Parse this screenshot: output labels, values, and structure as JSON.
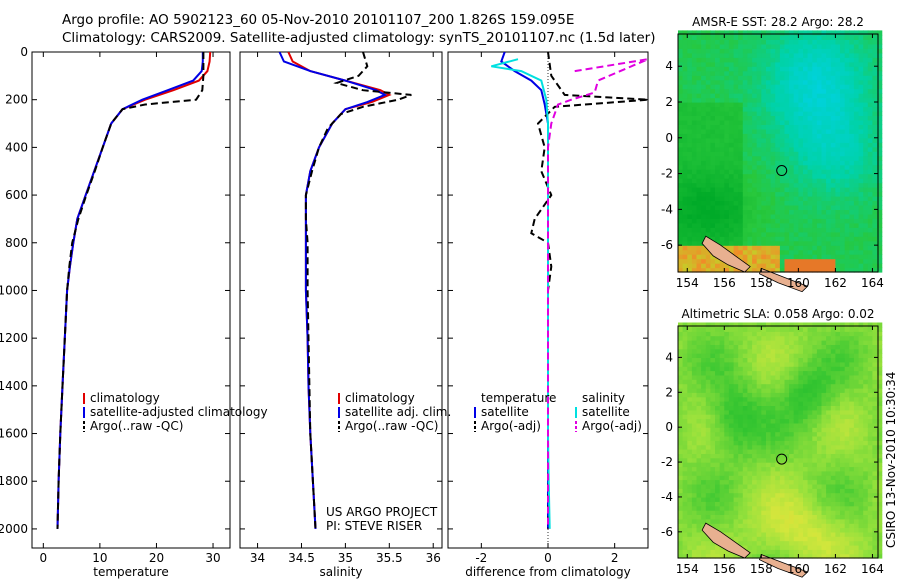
{
  "header": {
    "line1": "Argo profile: AO 5902123_60 05-Nov-2010 20101107_200 1.826S 159.095E",
    "line2": "Climatology: CARS2009. Satellite-adjusted climatology: synTS_20101107.nc (1.5d later)"
  },
  "side_label": "CSIRO 13-Nov-2010 10:30:34",
  "colors": {
    "climatology": "#e00000",
    "satellite": "#0000e6",
    "argo": "#000000",
    "sal_satellite": "#00e0e0",
    "sal_argo": "#e000e0"
  },
  "chart_data": [
    {
      "type": "line",
      "name": "temperature",
      "xlabel": "temperature",
      "ylabel": "",
      "xlim": [
        -2,
        33
      ],
      "ylim": [
        2080,
        0
      ],
      "xticks": [
        0,
        10,
        20,
        30
      ],
      "yticks": [
        0,
        200,
        400,
        600,
        800,
        1000,
        1200,
        1400,
        1600,
        1800,
        2000
      ],
      "legend": [
        "climatology",
        "satellite-adjusted climatology",
        "Argo(..raw -QC)"
      ],
      "series": [
        {
          "name": "climatology",
          "color": "red",
          "style": "solid",
          "points": [
            [
              29.5,
              0
            ],
            [
              29.4,
              40
            ],
            [
              29.0,
              80
            ],
            [
              27.5,
              120
            ],
            [
              23,
              160
            ],
            [
              18,
              200
            ],
            [
              14,
              240
            ],
            [
              12,
              300
            ],
            [
              10.5,
              400
            ],
            [
              9,
              500
            ],
            [
              7.5,
              600
            ],
            [
              6,
              700
            ],
            [
              5.3,
              800
            ],
            [
              4.7,
              900
            ],
            [
              4.2,
              1000
            ],
            [
              3.8,
              1200
            ],
            [
              3.4,
              1400
            ],
            [
              3.0,
              1600
            ],
            [
              2.7,
              1800
            ],
            [
              2.5,
              2000
            ]
          ]
        },
        {
          "name": "satellite-adjusted climatology",
          "color": "blue",
          "style": "solid",
          "points": [
            [
              28.2,
              0
            ],
            [
              28.2,
              40
            ],
            [
              28.0,
              80
            ],
            [
              26.5,
              120
            ],
            [
              22,
              160
            ],
            [
              17.5,
              200
            ],
            [
              14,
              240
            ],
            [
              12,
              300
            ],
            [
              10.5,
              400
            ],
            [
              9,
              500
            ],
            [
              7.5,
              600
            ],
            [
              6,
              700
            ],
            [
              5.3,
              800
            ],
            [
              4.7,
              900
            ],
            [
              4.2,
              1000
            ],
            [
              3.8,
              1200
            ],
            [
              3.4,
              1400
            ],
            [
              3.0,
              1600
            ],
            [
              2.7,
              1800
            ],
            [
              2.5,
              2000
            ]
          ]
        },
        {
          "name": "Argo(..raw -QC)",
          "color": "black",
          "style": "dashed",
          "points": [
            [
              28.3,
              0
            ],
            [
              28.3,
              100
            ],
            [
              28.1,
              160
            ],
            [
              27,
              200
            ],
            [
              18,
              220
            ],
            [
              14,
              240
            ],
            [
              12,
              300
            ],
            [
              10.5,
              400
            ],
            [
              9.1,
              500
            ],
            [
              7.6,
              600
            ],
            [
              6.2,
              700
            ],
            [
              5.1,
              800
            ],
            [
              4.6,
              900
            ],
            [
              4.2,
              1000
            ],
            [
              3.8,
              1200
            ],
            [
              3.4,
              1400
            ],
            [
              3.0,
              1600
            ],
            [
              2.7,
              1800
            ],
            [
              2.5,
              2000
            ]
          ]
        }
      ]
    },
    {
      "type": "line",
      "name": "salinity",
      "xlabel": "salinity",
      "xlim": [
        33.8,
        36.1
      ],
      "ylim": [
        2080,
        0
      ],
      "xticks": [
        34,
        34.5,
        35,
        35.5,
        36
      ],
      "legend": [
        "climatology",
        "satellite adj. clim.",
        "Argo(..raw -QC)"
      ],
      "annotation": [
        "US ARGO PROJECT",
        "PI: STEVE RISER"
      ],
      "series": [
        {
          "name": "climatology",
          "color": "red",
          "style": "solid",
          "points": [
            [
              34.35,
              0
            ],
            [
              34.4,
              40
            ],
            [
              34.6,
              80
            ],
            [
              35.0,
              120
            ],
            [
              35.4,
              160
            ],
            [
              35.5,
              180
            ],
            [
              35.3,
              210
            ],
            [
              35.0,
              240
            ],
            [
              34.85,
              300
            ],
            [
              34.7,
              400
            ],
            [
              34.6,
              500
            ],
            [
              34.55,
              600
            ],
            [
              34.55,
              700
            ],
            [
              34.55,
              800
            ],
            [
              34.55,
              1000
            ],
            [
              34.57,
              1200
            ],
            [
              34.58,
              1400
            ],
            [
              34.6,
              1600
            ],
            [
              34.63,
              1800
            ],
            [
              34.66,
              2000
            ]
          ]
        },
        {
          "name": "satellite adj. clim.",
          "color": "blue",
          "style": "solid",
          "points": [
            [
              34.25,
              0
            ],
            [
              34.3,
              40
            ],
            [
              34.6,
              80
            ],
            [
              35.0,
              120
            ],
            [
              35.35,
              160
            ],
            [
              35.45,
              180
            ],
            [
              35.25,
              210
            ],
            [
              35.0,
              240
            ],
            [
              34.85,
              300
            ],
            [
              34.7,
              400
            ],
            [
              34.6,
              500
            ],
            [
              34.55,
              600
            ],
            [
              34.55,
              700
            ],
            [
              34.55,
              800
            ],
            [
              34.55,
              1000
            ],
            [
              34.57,
              1200
            ],
            [
              34.58,
              1400
            ],
            [
              34.6,
              1600
            ],
            [
              34.63,
              1800
            ],
            [
              34.66,
              2000
            ]
          ]
        },
        {
          "name": "Argo(..raw -QC)",
          "color": "black",
          "style": "dashed",
          "points": [
            [
              35.2,
              0
            ],
            [
              35.25,
              60
            ],
            [
              35.15,
              100
            ],
            [
              34.9,
              130
            ],
            [
              35.2,
              160
            ],
            [
              35.75,
              180
            ],
            [
              35.6,
              200
            ],
            [
              35.2,
              230
            ],
            [
              34.95,
              260
            ],
            [
              34.8,
              320
            ],
            [
              34.7,
              400
            ],
            [
              34.62,
              500
            ],
            [
              34.55,
              600
            ],
            [
              34.55,
              700
            ],
            [
              34.57,
              800
            ],
            [
              34.57,
              900
            ],
            [
              34.57,
              1000
            ],
            [
              34.58,
              1200
            ],
            [
              34.6,
              1600
            ],
            [
              34.63,
              1800
            ],
            [
              34.66,
              2000
            ]
          ]
        }
      ]
    },
    {
      "type": "line",
      "name": "difference",
      "xlabel": "difference from climatology",
      "xlim": [
        -3,
        3
      ],
      "ylim": [
        2080,
        0
      ],
      "xticks": [
        -2,
        0,
        2
      ],
      "legend_temperature": {
        "title": "temperature",
        "items": [
          "satellite",
          "Argo(-adj)"
        ]
      },
      "legend_salinity": {
        "title": "salinity",
        "items": [
          "satellite",
          "Argo(-adj)"
        ]
      },
      "series": [
        {
          "name": "temperature satellite",
          "color": "blue",
          "style": "solid",
          "points": [
            [
              -1.3,
              0
            ],
            [
              -1.4,
              40
            ],
            [
              -1.0,
              80
            ],
            [
              -0.5,
              120
            ],
            [
              -0.2,
              160
            ],
            [
              -0.1,
              220
            ],
            [
              0,
              300
            ],
            [
              0,
              400
            ],
            [
              0,
              500
            ],
            [
              0,
              600
            ],
            [
              0,
              800
            ],
            [
              0,
              1200
            ],
            [
              0,
              1600
            ],
            [
              0,
              2000
            ]
          ]
        },
        {
          "name": "temperature Argo(-adj)",
          "color": "black",
          "style": "dashed",
          "points": [
            [
              0,
              0
            ],
            [
              0.1,
              100
            ],
            [
              0.5,
              180
            ],
            [
              3.0,
              200
            ],
            [
              0.2,
              230
            ],
            [
              -0.3,
              300
            ],
            [
              -0.1,
              400
            ],
            [
              -0.2,
              500
            ],
            [
              0.1,
              600
            ],
            [
              -0.4,
              700
            ],
            [
              -0.5,
              760
            ],
            [
              0,
              800
            ],
            [
              0.1,
              900
            ],
            [
              0,
              1000
            ],
            [
              0,
              1200
            ],
            [
              0,
              1600
            ],
            [
              0,
              2000
            ]
          ]
        },
        {
          "name": "salinity satellite",
          "color": "cyan",
          "style": "solid",
          "points": [
            [
              -0.9,
              30
            ],
            [
              -1.7,
              60
            ],
            [
              -0.8,
              80
            ],
            [
              -0.2,
              120
            ],
            [
              -0.05,
              200
            ],
            [
              0,
              300
            ],
            [
              0,
              500
            ],
            [
              0,
              800
            ],
            [
              0,
              1200
            ],
            [
              0,
              1600
            ],
            [
              0.02,
              1800
            ],
            [
              0.05,
              2000
            ]
          ]
        },
        {
          "name": "salinity Argo(-adj)",
          "color": "magenta",
          "style": "dashed",
          "points": [
            [
              0.8,
              80
            ],
            [
              3.0,
              30
            ],
            [
              1.5,
              120
            ],
            [
              1.4,
              170
            ],
            [
              0.7,
              200
            ],
            [
              0.3,
              220
            ],
            [
              0.1,
              300
            ],
            [
              0,
              400
            ],
            [
              0,
              600
            ],
            [
              0,
              800
            ],
            [
              0,
              1000
            ],
            [
              0,
              1200
            ],
            [
              0,
              1600
            ],
            [
              0,
              2000
            ]
          ]
        }
      ]
    },
    {
      "type": "heatmap",
      "name": "sst_map",
      "title": "AMSR-E SST: 28.2 Argo: 28.2",
      "xticks": [
        154,
        156,
        158,
        160,
        162,
        164
      ],
      "yticks": [
        4,
        2,
        0,
        -2,
        -4,
        -6
      ],
      "xlim": [
        153.5,
        164.3
      ],
      "ylim": [
        -7.5,
        5.8
      ],
      "marker": [
        159.1,
        -1.83
      ]
    },
    {
      "type": "heatmap",
      "name": "sla_map",
      "title": "Altimetric SLA: 0.058 Argo: 0.02",
      "xticks": [
        154,
        156,
        158,
        160,
        162,
        164
      ],
      "yticks": [
        4,
        2,
        0,
        -2,
        -4,
        -6
      ],
      "xlim": [
        153.5,
        164.3
      ],
      "ylim": [
        -7.5,
        5.8
      ],
      "marker": [
        159.1,
        -1.83
      ]
    }
  ]
}
